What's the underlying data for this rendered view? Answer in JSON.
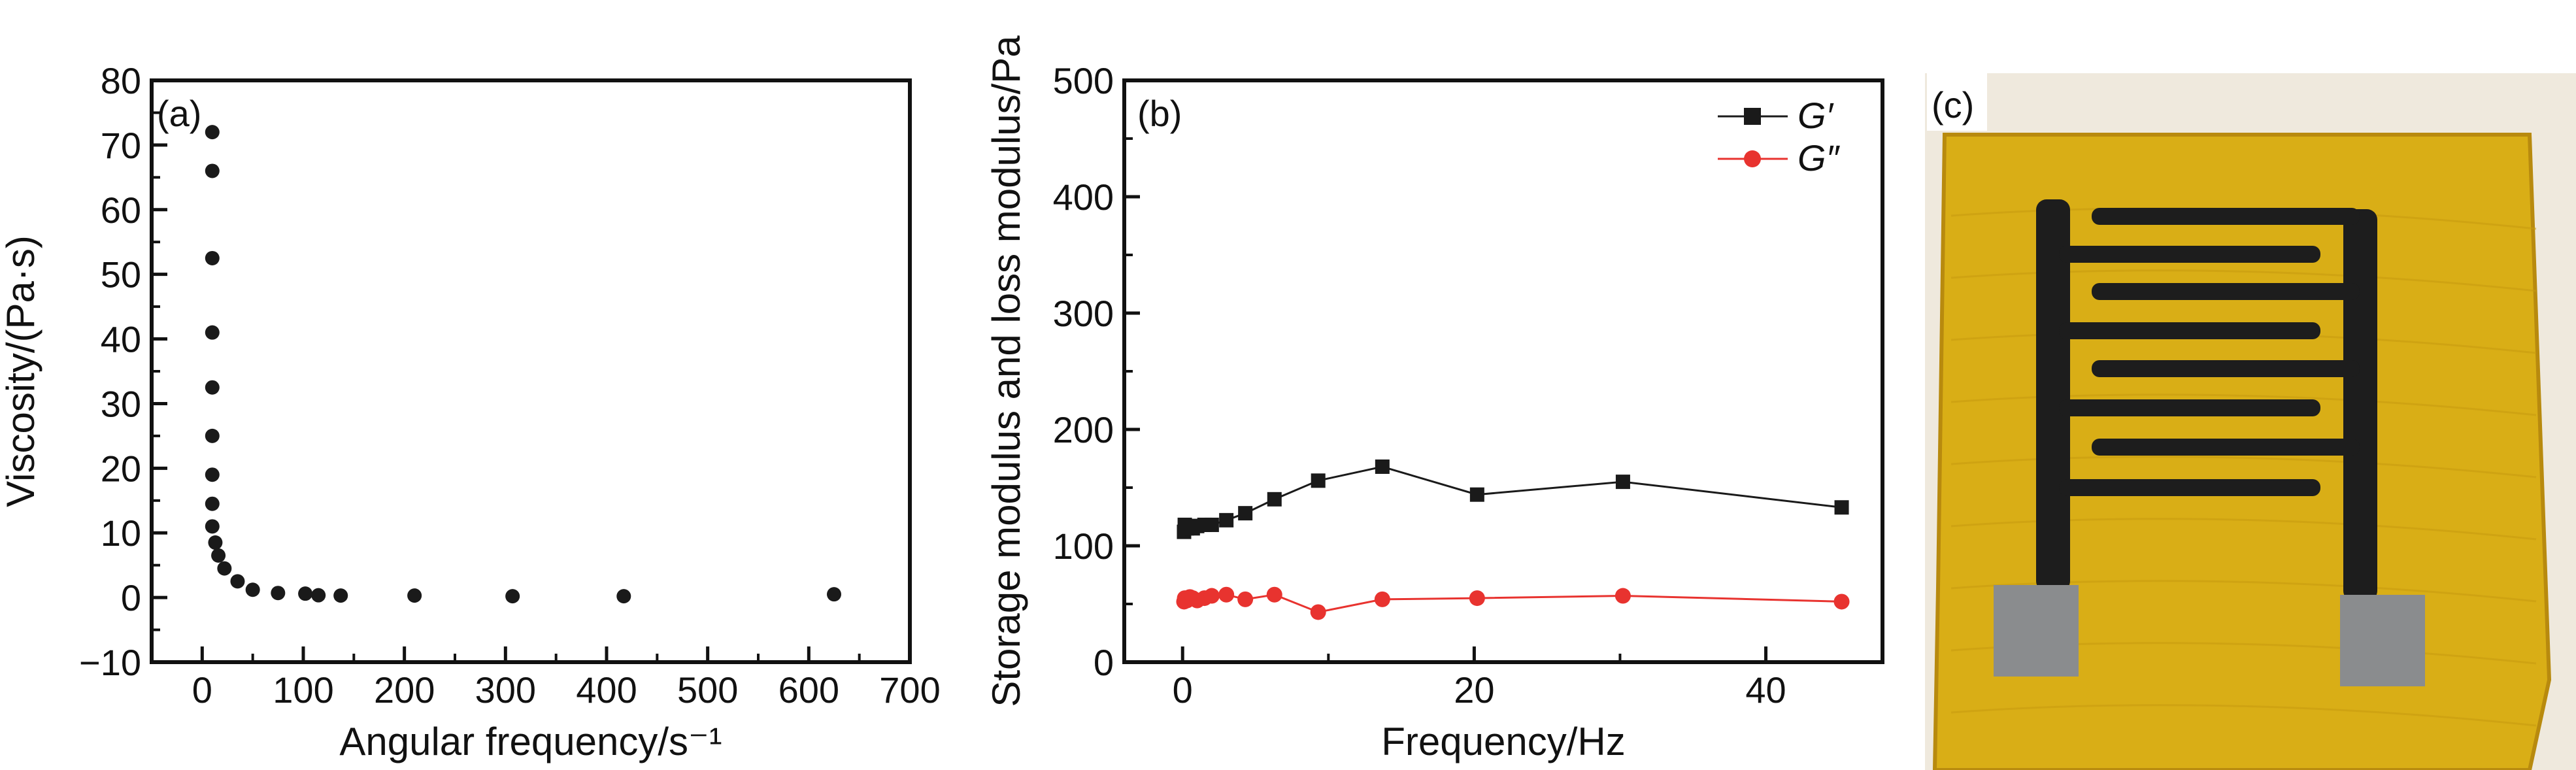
{
  "colors": {
    "axis": "#111111",
    "black_series": "#1a1a1a",
    "red_series": "#e8332f",
    "tape_yellow": "#d9ae16",
    "tape_dark": "#b88a0e",
    "electrode": "#1d1d1d",
    "pad": "#8a8c8e",
    "background_photo": "#efe9dd"
  },
  "chart_data": [
    {
      "panel": "a",
      "panel_label": "(a)",
      "type": "scatter",
      "xlabel": "Angular frequency/s⁻¹",
      "ylabel": "Viscosity/(Pa·s)",
      "xlim": [
        -50,
        700
      ],
      "ylim": [
        -10,
        80
      ],
      "xticks": [
        "0",
        "100",
        "200",
        "300",
        "400",
        "500",
        "600",
        "700"
      ],
      "yticks": [
        "−10",
        "0",
        "10",
        "20",
        "30",
        "40",
        "50",
        "60",
        "70",
        "80"
      ],
      "series": [
        {
          "marker": "circle",
          "color": "#1a1a1a",
          "points": [
            [
              10,
              72
            ],
            [
              10,
              66
            ],
            [
              10,
              52.5
            ],
            [
              10,
              41
            ],
            [
              10,
              32.5
            ],
            [
              10,
              25
            ],
            [
              10,
              19
            ],
            [
              10,
              14.5
            ],
            [
              10,
              11
            ],
            [
              13,
              8.5
            ],
            [
              16,
              6.5
            ],
            [
              22,
              4.5
            ],
            [
              35,
              2.5
            ],
            [
              50,
              1.2
            ],
            [
              75,
              0.7
            ],
            [
              102,
              0.6
            ],
            [
              115,
              0.35
            ],
            [
              137,
              0.3
            ],
            [
              210,
              0.3
            ],
            [
              307,
              0.2
            ],
            [
              417,
              0.2
            ],
            [
              625,
              0.5
            ]
          ]
        }
      ]
    },
    {
      "panel": "b",
      "panel_label": "(b)",
      "type": "line",
      "xlabel": "Frequency/Hz",
      "ylabel": "Storage modulus and loss modulus/Pa",
      "xlim": [
        -4,
        48
      ],
      "ylim": [
        0,
        500
      ],
      "xticks": [
        "0",
        "20",
        "40"
      ],
      "yticks": [
        "0",
        "100",
        "200",
        "300",
        "400",
        "500"
      ],
      "legend_position": "top-right",
      "series": [
        {
          "name": "G′",
          "marker": "square",
          "color": "#1a1a1a",
          "points": [
            [
              0.1,
              112
            ],
            [
              0.15,
              118
            ],
            [
              0.3,
              115
            ],
            [
              0.5,
              117
            ],
            [
              0.7,
              115
            ],
            [
              1.0,
              117
            ],
            [
              1.5,
              118
            ],
            [
              2.0,
              118
            ],
            [
              3.0,
              122
            ],
            [
              4.3,
              128
            ],
            [
              6.3,
              140
            ],
            [
              9.3,
              156
            ],
            [
              13.7,
              168
            ],
            [
              20.2,
              144
            ],
            [
              30.2,
              155
            ],
            [
              45.2,
              133
            ]
          ]
        },
        {
          "name": "G″",
          "marker": "circle",
          "color": "#e8332f",
          "points": [
            [
              0.1,
              52
            ],
            [
              0.15,
              55
            ],
            [
              0.3,
              53
            ],
            [
              0.5,
              56
            ],
            [
              0.7,
              55
            ],
            [
              1.0,
              53
            ],
            [
              1.5,
              55
            ],
            [
              2.0,
              57
            ],
            [
              3.0,
              58
            ],
            [
              4.3,
              54
            ],
            [
              6.3,
              58
            ],
            [
              9.3,
              43
            ],
            [
              13.7,
              54
            ],
            [
              20.2,
              55
            ],
            [
              30.2,
              57
            ],
            [
              45.2,
              52
            ]
          ]
        }
      ]
    }
  ],
  "photo": {
    "panel_label": "(c)"
  }
}
